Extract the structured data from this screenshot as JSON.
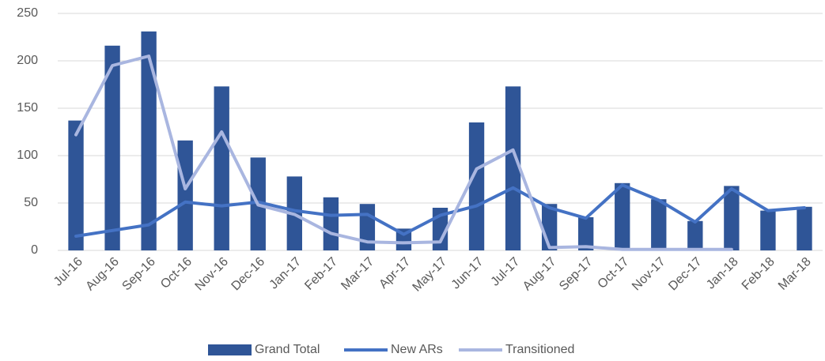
{
  "chart_data": {
    "type": "bar",
    "categories": [
      "Jul-16",
      "Aug-16",
      "Sep-16",
      "Oct-16",
      "Nov-16",
      "Dec-16",
      "Jan-17",
      "Feb-17",
      "Mar-17",
      "Apr-17",
      "May-17",
      "Jun-17",
      "Jul-17",
      "Aug-17",
      "Sep-17",
      "Oct-17",
      "Nov-17",
      "Dec-17",
      "Jan-18",
      "Feb-18",
      "Mar-18"
    ],
    "series": [
      {
        "name": "Grand Total",
        "type": "bar",
        "color": "#2f5597",
        "values": [
          137,
          216,
          231,
          116,
          173,
          98,
          78,
          56,
          49,
          23,
          45,
          135,
          173,
          49,
          35,
          71,
          54,
          31,
          68,
          42,
          46
        ]
      },
      {
        "name": "New ARs",
        "type": "line",
        "color": "#4472c4",
        "values": [
          15,
          21,
          27,
          51,
          47,
          51,
          42,
          37,
          38,
          17,
          37,
          47,
          66,
          45,
          34,
          69,
          53,
          30,
          65,
          42,
          45
        ]
      },
      {
        "name": "Transitioned",
        "type": "line",
        "color": "#a9b6e0",
        "values": [
          122,
          195,
          205,
          65,
          125,
          48,
          38,
          18,
          9,
          8,
          9,
          86,
          106,
          3,
          4,
          1,
          1,
          1,
          1,
          null,
          null
        ]
      }
    ],
    "ylim": [
      0,
      250
    ],
    "yticks": [
      0,
      50,
      100,
      150,
      200,
      250
    ],
    "grid": true,
    "legend": "bottom"
  }
}
